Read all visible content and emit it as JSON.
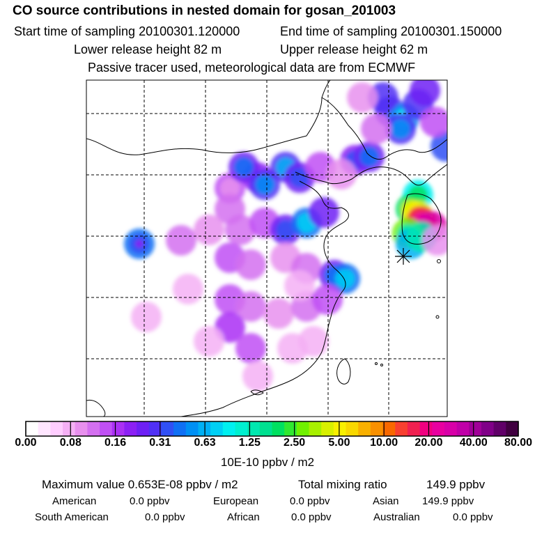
{
  "title": "CO  source contributions in nested domain for gosan_201003",
  "header": {
    "start_label": "Start time of sampling 20100301.120000",
    "end_label": "End time of sampling 20100301.150000",
    "lower_label": "Lower release height   82 m",
    "upper_label": "Upper release height   62 m",
    "tracer_note": "Passive tracer used, meteorological data are from ECMWF"
  },
  "colors": {
    "scale": [
      "#ffffff",
      "#ffe6ff",
      "#ffcdff",
      "#f5b0f5",
      "#e890ee",
      "#d470f0",
      "#c050f5",
      "#aa30f5",
      "#8c20f5",
      "#6e20f5",
      "#5030f5",
      "#3050f5",
      "#1070f5",
      "#0090f5",
      "#00b0f5",
      "#00d0f5",
      "#00f0f0",
      "#00f0d0",
      "#00e8b0",
      "#00e090",
      "#00e060",
      "#30e830",
      "#70f000",
      "#a8f000",
      "#d8f000",
      "#f8f000",
      "#f8d800",
      "#f8b000",
      "#f89000",
      "#f86800",
      "#f84030",
      "#f02050",
      "#f00080",
      "#e800a0",
      "#d800a8",
      "#c000a8",
      "#a00098",
      "#800088",
      "#600068",
      "#400040"
    ],
    "marker": "#000000"
  },
  "colorbar": {
    "tick_labels": [
      "0.00",
      "0.08",
      "0.16",
      "0.31",
      "0.63",
      "1.25",
      "2.50",
      "5.00",
      "10.00",
      "20.00",
      "40.00",
      "80.00"
    ],
    "units": "10E-10 ppbv / m2"
  },
  "stats": {
    "max_label": "Maximum value  0.653E-08 ppbv / m2",
    "total_label": "Total mixing ratio",
    "total_value": "149.9 ppbv",
    "sources": [
      {
        "name": "American",
        "value": "0.0 ppbv"
      },
      {
        "name": "European",
        "value": "0.0 ppbv"
      },
      {
        "name": "Asian",
        "value": "149.9 ppbv"
      },
      {
        "name": "South American",
        "value": "0.0 ppbv"
      },
      {
        "name": "African",
        "value": "0.0 ppbv"
      },
      {
        "name": "Australian",
        "value": "0.0 ppbv"
      }
    ]
  }
}
